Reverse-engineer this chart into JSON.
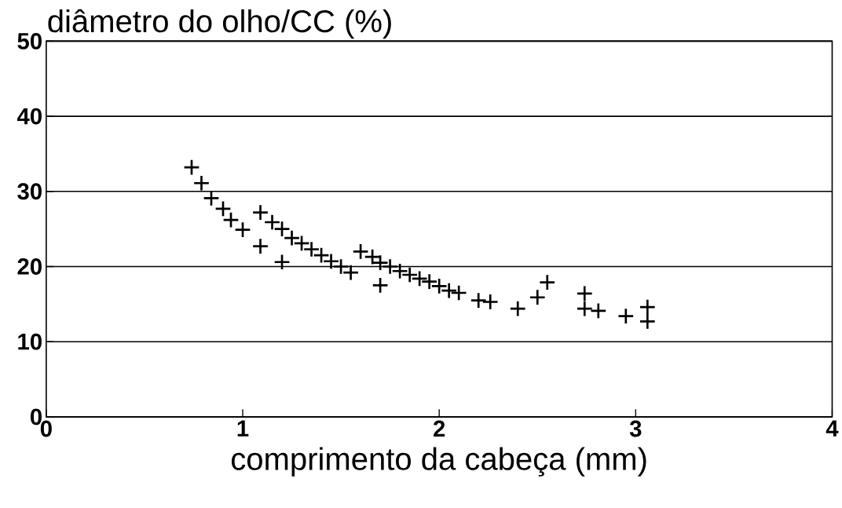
{
  "chart_data": {
    "type": "scatter",
    "xlabel": "comprimento da cabeça (mm)",
    "ylabel": "diâmetro do olho/CC (%)",
    "x": [
      0.74,
      0.79,
      0.84,
      0.9,
      0.94,
      1.0,
      1.09,
      1.15,
      1.2,
      1.25,
      1.3,
      1.35,
      1.4,
      1.45,
      1.5,
      1.55,
      1.09,
      1.2,
      1.6,
      1.66,
      1.7,
      1.7,
      1.75,
      1.8,
      1.85,
      1.9,
      1.95,
      2.0,
      2.05,
      2.1,
      2.2,
      2.26,
      2.4,
      2.5,
      2.55,
      2.74,
      2.74,
      2.81,
      2.95,
      3.06,
      3.06
    ],
    "values": [
      33.2,
      31.1,
      29.1,
      27.7,
      26.2,
      24.9,
      27.2,
      25.9,
      25.0,
      23.8,
      23.1,
      22.3,
      21.5,
      20.7,
      20.0,
      19.2,
      22.7,
      20.6,
      22.0,
      21.3,
      20.5,
      17.5,
      20.0,
      19.4,
      18.9,
      18.4,
      18.0,
      17.4,
      16.8,
      16.5,
      15.5,
      15.3,
      14.4,
      15.9,
      17.9,
      16.4,
      14.4,
      14.1,
      13.4,
      14.6,
      12.7
    ],
    "color": "#000000",
    "marker": "cross",
    "xlim": [
      0,
      4
    ],
    "ylim": [
      0,
      50
    ],
    "xticks": [
      0,
      1,
      2,
      3,
      4
    ],
    "yticks": [
      0,
      10,
      20,
      30,
      40,
      50
    ],
    "grid": "y"
  }
}
